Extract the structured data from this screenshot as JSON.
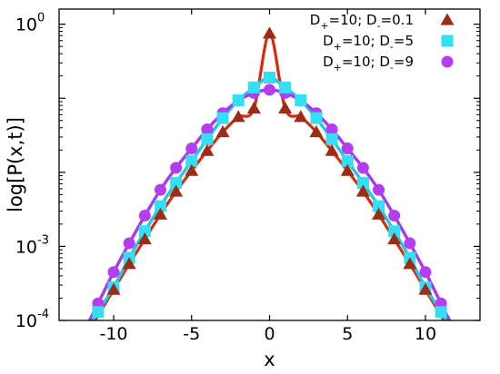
{
  "chart_data": {
    "type": "line",
    "title": "",
    "xlabel": "x",
    "ylabel": "log[P(x,t)]",
    "xlim": [
      -13.5,
      13.5
    ],
    "ylim": [
      0.0001,
      1.6
    ],
    "yscale": "log",
    "grid": false,
    "legend_placement": "top-right",
    "x_ticks": [
      {
        "value": -10,
        "label": "-10"
      },
      {
        "value": -5,
        "label": "-5"
      },
      {
        "value": 0,
        "label": "0"
      },
      {
        "value": 5,
        "label": "5"
      },
      {
        "value": 10,
        "label": "10"
      }
    ],
    "y_ticks": [
      {
        "value": 1,
        "base": "10",
        "exp": "0"
      },
      {
        "value": 0.001,
        "base": "10",
        "exp": "-3"
      },
      {
        "value": 0.0001,
        "base": "10",
        "exp": "-4"
      }
    ],
    "series": [
      {
        "name_parts": [
          "D",
          "+",
          "=10; D",
          "-",
          "=0.1"
        ],
        "marker": "triangle",
        "marker_color": "#9b2d16",
        "line_color": "#d82a0c",
        "x": [
          -10,
          -9,
          -8,
          -7,
          -6,
          -5,
          -4,
          -3,
          -2,
          -1,
          0,
          1,
          2,
          3,
          4,
          5,
          6,
          7,
          8,
          9,
          10
        ],
        "y": [
          0.00026,
          0.00058,
          0.00125,
          0.0027,
          0.0055,
          0.0105,
          0.0195,
          0.035,
          0.056,
          0.073,
          0.75,
          0.073,
          0.056,
          0.035,
          0.0195,
          0.0105,
          0.0055,
          0.0027,
          0.00125,
          0.00058,
          0.00026
        ]
      },
      {
        "name_parts": [
          "D",
          "+",
          "=10; D",
          "-",
          "=5"
        ],
        "marker": "square",
        "marker_color": "#33dff2",
        "line_color": "#1fc9e0",
        "x": [
          -11,
          -10,
          -9,
          -8,
          -7,
          -6,
          -5,
          -4,
          -3,
          -2,
          -1,
          0,
          1,
          2,
          3,
          4,
          5,
          6,
          7,
          8,
          9,
          10,
          11
        ],
        "y": [
          0.00013,
          0.00028,
          0.0007,
          0.0016,
          0.0035,
          0.0072,
          0.0142,
          0.028,
          0.054,
          0.094,
          0.14,
          0.19,
          0.14,
          0.094,
          0.054,
          0.028,
          0.0142,
          0.0072,
          0.0035,
          0.0016,
          0.0007,
          0.00028,
          0.00013
        ]
      },
      {
        "name_parts": [
          "D",
          "+",
          "=10; D",
          "-",
          "=9"
        ],
        "marker": "circle",
        "marker_color": "#b43df1",
        "line_color": "#a838e8",
        "x": [
          -11,
          -10,
          -9,
          -8,
          -7,
          -6,
          -5,
          -4,
          -3,
          -2,
          -1,
          0,
          1,
          2,
          3,
          4,
          5,
          6,
          7,
          8,
          9,
          10,
          11
        ],
        "y": [
          0.00017,
          0.00045,
          0.0011,
          0.0026,
          0.0058,
          0.0115,
          0.021,
          0.038,
          0.063,
          0.093,
          0.118,
          0.13,
          0.118,
          0.093,
          0.063,
          0.038,
          0.021,
          0.0115,
          0.0058,
          0.0026,
          0.0011,
          0.00045,
          0.00017
        ]
      }
    ]
  }
}
